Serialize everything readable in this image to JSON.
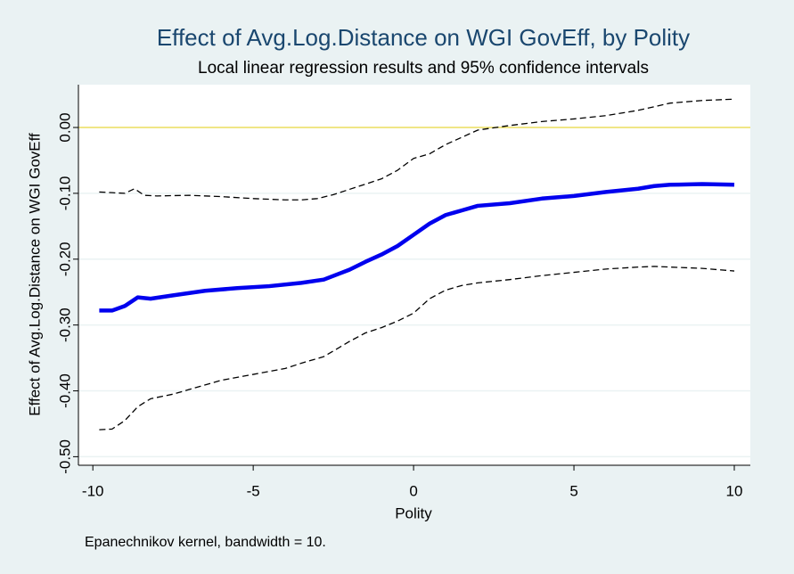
{
  "chart_data": {
    "type": "line",
    "title": "Effect of Avg.Log.Distance on WGI GovEff, by Polity",
    "subtitle": "Local linear regression results and 95% confidence intervals",
    "x_label": "Polity",
    "y_label": "Effect of Avg.Log.Distance on WGI GovEff",
    "note": "Epanechnikov kernel, bandwidth = 10.",
    "xlim": [
      -10.45,
      10.5
    ],
    "xticks": [
      -10,
      -5,
      0,
      5,
      10
    ],
    "ylim": [
      -0.513,
      0.065
    ],
    "yticks": [
      {
        "value": -0.5,
        "label": "-0.50"
      },
      {
        "value": -0.4,
        "label": "-0.40"
      },
      {
        "value": -0.3,
        "label": "-0.30"
      },
      {
        "value": -0.2,
        "label": "-0.20"
      },
      {
        "value": -0.1,
        "label": "-0.10"
      },
      {
        "value": 0,
        "label": "0.00"
      }
    ],
    "grid": true,
    "reference_line": {
      "value": 0,
      "color": "#eee060"
    },
    "series": [
      {
        "color": "#000000",
        "style": "dashed",
        "width": 1.3,
        "x": [
          -9.8,
          -9.4,
          -9,
          -8.7,
          -8.4,
          -8,
          -7,
          -6,
          -5,
          -4,
          -3.5,
          -3,
          -2.5,
          -2,
          -1.5,
          -1,
          -0.5,
          0,
          0.5,
          1,
          1.5,
          2,
          3,
          4,
          5,
          6,
          7,
          8,
          9,
          10
        ],
        "values": [
          -0.098,
          -0.099,
          -0.1,
          -0.093,
          -0.103,
          -0.104,
          -0.103,
          -0.105,
          -0.108,
          -0.11,
          -0.11,
          -0.108,
          -0.102,
          -0.094,
          -0.086,
          -0.078,
          -0.065,
          -0.047,
          -0.04,
          -0.026,
          -0.015,
          -0.004,
          0.003,
          0.009,
          0.013,
          0.018,
          0.026,
          0.037,
          0.041,
          0.043
        ]
      },
      {
        "color": "#0000ee",
        "style": "solid",
        "width": 4.5,
        "x": [
          -9.8,
          -9.4,
          -9,
          -8.6,
          -8.2,
          -7.5,
          -6.5,
          -5.5,
          -4.5,
          -3.5,
          -2.8,
          -2,
          -1.5,
          -1,
          -0.5,
          0,
          0.5,
          1,
          1.5,
          2,
          3,
          4,
          5,
          6,
          7,
          7.5,
          8,
          9,
          10
        ],
        "values": [
          -0.278,
          -0.278,
          -0.271,
          -0.258,
          -0.26,
          -0.255,
          -0.248,
          -0.244,
          -0.241,
          -0.236,
          -0.231,
          -0.216,
          -0.204,
          -0.193,
          -0.18,
          -0.163,
          -0.146,
          -0.133,
          -0.126,
          -0.119,
          -0.115,
          -0.108,
          -0.104,
          -0.098,
          -0.093,
          -0.089,
          -0.087,
          -0.086,
          -0.087
        ]
      },
      {
        "color": "#000000",
        "style": "dashed",
        "width": 1.3,
        "x": [
          -9.8,
          -9.4,
          -9,
          -8.6,
          -8.2,
          -7.5,
          -7,
          -6,
          -5,
          -4,
          -3.5,
          -2.8,
          -2,
          -1.5,
          -1,
          -0.5,
          0,
          0.5,
          1,
          1.5,
          2,
          3,
          4,
          5,
          6,
          7,
          7.5,
          8,
          9,
          10
        ],
        "values": [
          -0.459,
          -0.458,
          -0.445,
          -0.424,
          -0.412,
          -0.405,
          -0.398,
          -0.384,
          -0.375,
          -0.366,
          -0.358,
          -0.348,
          -0.325,
          -0.312,
          -0.304,
          -0.294,
          -0.282,
          -0.26,
          -0.247,
          -0.24,
          -0.236,
          -0.231,
          -0.225,
          -0.22,
          -0.215,
          -0.212,
          -0.211,
          -0.212,
          -0.214,
          -0.218
        ]
      }
    ]
  }
}
